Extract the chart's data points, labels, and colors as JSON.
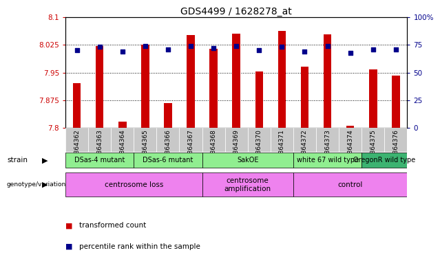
{
  "title": "GDS4499 / 1628278_at",
  "samples": [
    "GSM864362",
    "GSM864363",
    "GSM864364",
    "GSM864365",
    "GSM864366",
    "GSM864367",
    "GSM864368",
    "GSM864369",
    "GSM864370",
    "GSM864371",
    "GSM864372",
    "GSM864373",
    "GSM864374",
    "GSM864375",
    "GSM864376"
  ],
  "red_values": [
    7.921,
    8.022,
    7.817,
    8.025,
    7.868,
    8.052,
    8.015,
    8.055,
    7.952,
    8.063,
    7.965,
    8.053,
    7.806,
    7.958,
    7.942
  ],
  "blue_values": [
    70,
    73,
    69,
    74,
    71,
    74,
    72,
    74,
    70,
    73,
    69,
    74,
    68,
    71,
    71
  ],
  "ylim_left": [
    7.8,
    8.1
  ],
  "ylim_right": [
    0,
    100
  ],
  "yticks_left": [
    7.8,
    7.875,
    7.95,
    8.025,
    8.1
  ],
  "yticks_left_labels": [
    "7.8",
    "7.875",
    "7.95",
    "8.025",
    "8.1"
  ],
  "yticks_right": [
    0,
    25,
    50,
    75,
    100
  ],
  "yticks_right_labels": [
    "0",
    "25",
    "50",
    "75",
    "100%"
  ],
  "grid_lines": [
    7.875,
    7.95,
    8.025
  ],
  "strain_groups": [
    {
      "label": "DSas-4 mutant",
      "start": 0,
      "end": 2,
      "color": "#90EE90"
    },
    {
      "label": "DSas-6 mutant",
      "start": 3,
      "end": 5,
      "color": "#90EE90"
    },
    {
      "label": "SakOE",
      "start": 6,
      "end": 9,
      "color": "#90EE90"
    },
    {
      "label": "white 67 wild type",
      "start": 10,
      "end": 12,
      "color": "#90EE90"
    },
    {
      "label": "OregonR wild type",
      "start": 13,
      "end": 14,
      "color": "#3CB371"
    }
  ],
  "genotype_groups": [
    {
      "label": "centrosome loss",
      "start": 0,
      "end": 5,
      "color": "#EE82EE"
    },
    {
      "label": "centrosome\namplification",
      "start": 6,
      "end": 9,
      "color": "#EE82EE"
    },
    {
      "label": "control",
      "start": 10,
      "end": 14,
      "color": "#EE82EE"
    }
  ],
  "legend_red": "transformed count",
  "legend_blue": "percentile rank within the sample",
  "bar_color": "#CC0000",
  "dot_color": "#00008B",
  "bar_width": 0.35,
  "dot_size": 18,
  "xtick_bg": "#C8C8C8"
}
